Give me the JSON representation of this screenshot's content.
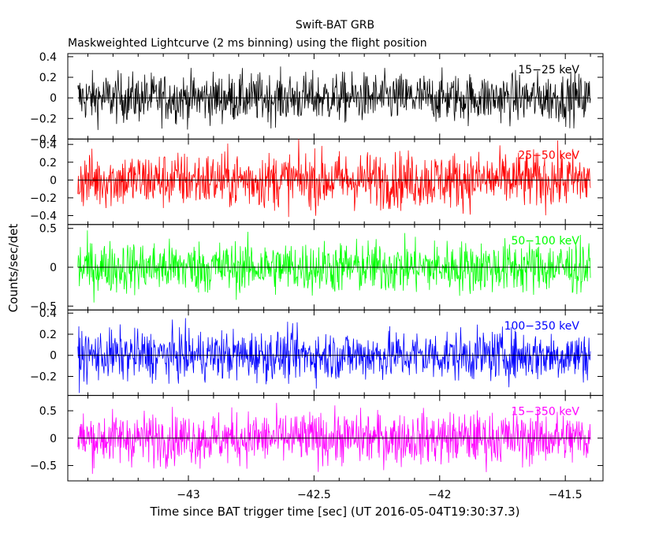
{
  "chart_data": {
    "type": "line",
    "title": "Swift-BAT GRB",
    "subtitle": "Maskweighted Lightcurve (2 ms binning) using the flight position",
    "xlabel": "Time since BAT trigger time [sec] (UT 2016-05-04T19:30:37.3)",
    "ylabel": "Counts/sec/det",
    "xlim": [
      -43.48,
      -41.35
    ],
    "x_range_data": [
      -43.44,
      -41.4
    ],
    "x_ticks": [
      -43,
      -42.5,
      -42,
      -41.5
    ],
    "x_tick_labels": [
      "−43",
      "−42.5",
      "−42",
      "−41.5"
    ],
    "series": [
      {
        "name": "15−25 keV",
        "color": "#000000",
        "ylim": [
          -0.4,
          0.43
        ],
        "yticks": [
          -0.4,
          -0.2,
          0,
          0.2,
          0.4
        ],
        "ytick_labels": [
          "−0.4",
          "−0.2",
          "0",
          "0.2",
          "0.4"
        ],
        "amplitude": 0.12
      },
      {
        "name": "25−50 keV",
        "color": "#ff0000",
        "ylim": [
          -0.5,
          0.46
        ],
        "yticks": [
          -0.4,
          -0.2,
          0,
          0.2,
          0.4
        ],
        "ytick_labels": [
          "−0.4",
          "−0.2",
          "0",
          "0.2",
          "0.4"
        ],
        "amplitude": 0.16
      },
      {
        "name": "50−100 keV",
        "color": "#00ff00",
        "ylim": [
          -0.55,
          0.55
        ],
        "yticks": [
          -0.5,
          0,
          0.5
        ],
        "ytick_labels": [
          "−0.5",
          "0",
          "0.5"
        ],
        "amplitude": 0.17
      },
      {
        "name": "100−350 keV",
        "color": "#0000ff",
        "ylim": [
          -0.38,
          0.43
        ],
        "yticks": [
          -0.2,
          0,
          0.2,
          0.4
        ],
        "ytick_labels": [
          "−0.2",
          "0",
          "0.2",
          "0.4"
        ],
        "amplitude": 0.12
      },
      {
        "name": "15−350 keV",
        "color": "#ff00ff",
        "ylim": [
          -0.78,
          0.78
        ],
        "yticks": [
          -0.5,
          0,
          0.5
        ],
        "ytick_labels": [
          "−0.5",
          "0",
          "0.5"
        ],
        "amplitude": 0.24
      }
    ],
    "grid": false,
    "legend": "band labels inside each panel, top-right"
  }
}
